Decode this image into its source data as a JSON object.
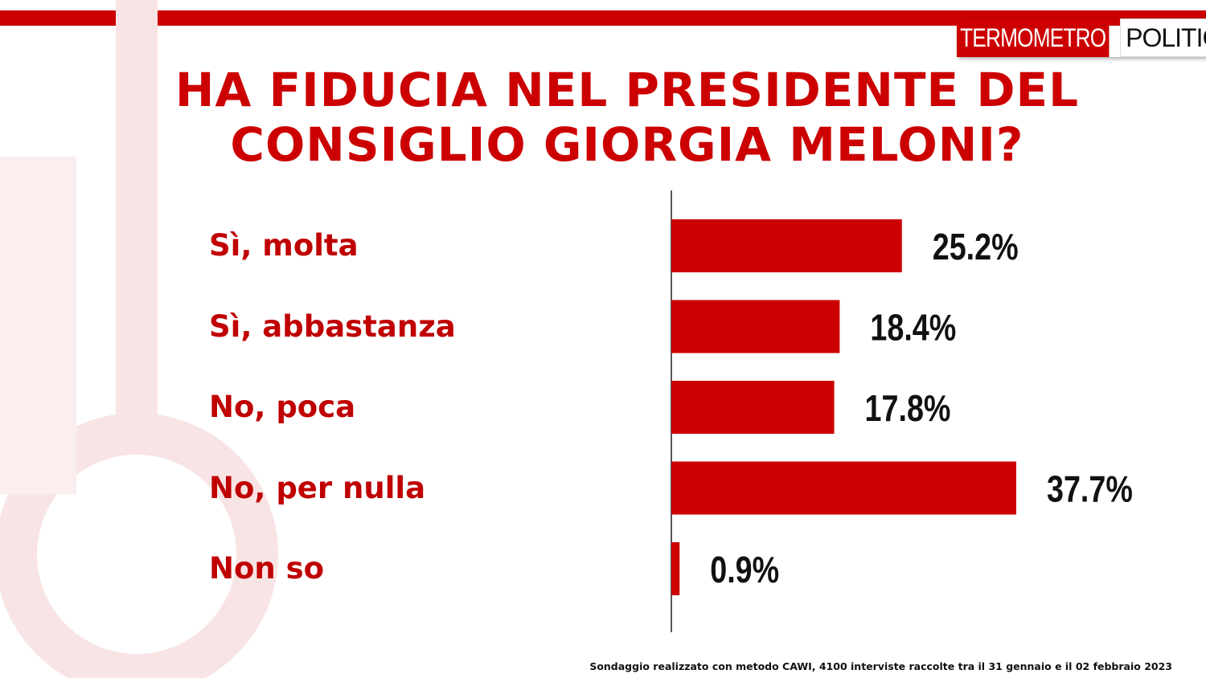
{
  "header": {
    "logo_part1": "TERMOMETRO",
    "logo_part2": "POLITICO",
    "title_line1": "HA FIDUCIA NEL PRESIDENTE DEL",
    "title_line2": "CONSIGLIO GIORGIA MELONI?"
  },
  "colors": {
    "accent": "#cc0000",
    "label": "#c00000",
    "value_text": "#111111"
  },
  "chart_data": {
    "type": "bar",
    "orientation": "horizontal",
    "title": "HA FIDUCIA NEL PRESIDENTE DEL CONSIGLIO GIORGIA MELONI?",
    "categories": [
      "Sì, molta",
      "Sì, abbastanza",
      "No, poca",
      "No, per nulla",
      "Non so"
    ],
    "values": [
      25.2,
      18.4,
      17.8,
      37.7,
      0.9
    ],
    "value_labels": [
      "25.2%",
      "18.4%",
      "17.8%",
      "37.7%",
      "0.9%"
    ],
    "unit": "%",
    "xlim": [
      0,
      40
    ],
    "grid": false,
    "legend": "none"
  },
  "footnote": "Sondaggio realizzato con metodo CAWI, 4100 interviste raccolte tra il 31 gennaio e il 02 febbraio 2023"
}
